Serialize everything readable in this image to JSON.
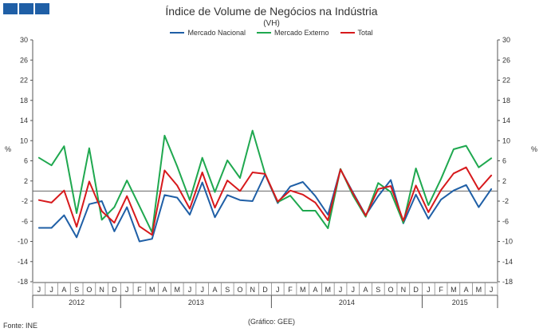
{
  "header": {
    "title": "Índice de Volume de Negócios na Indústria",
    "subtitle": "(VH)"
  },
  "footer": {
    "source": "Fonte:  INE",
    "credit": "(Gráfico:  GEE)"
  },
  "colors": {
    "nacional": "#1f5fa6",
    "externo": "#1fa84f",
    "total": "#d7191c",
    "logo": "#1f5fa6",
    "grid": "#888888"
  },
  "chart_data": {
    "type": "line",
    "title": "Índice de Volume de Negócios na Indústria",
    "subtitle": "(VH)",
    "ylabel": "%",
    "ylim": [
      -18,
      30
    ],
    "yticks": [
      30,
      26,
      22,
      18,
      14,
      10,
      6,
      2,
      -2,
      -6,
      -10,
      -14,
      -18
    ],
    "month_labels": [
      "J",
      "J",
      "A",
      "S",
      "O",
      "N",
      "D",
      "J",
      "F",
      "M",
      "A",
      "M",
      "J",
      "J",
      "A",
      "S",
      "O",
      "N",
      "D",
      "J",
      "F",
      "M",
      "A",
      "M",
      "J",
      "J",
      "A",
      "S",
      "O",
      "N",
      "D",
      "J",
      "F",
      "M",
      "A",
      "M",
      "J"
    ],
    "year_labels": [
      {
        "label": "2012",
        "start": 0,
        "end": 6
      },
      {
        "label": "2013",
        "start": 7,
        "end": 18
      },
      {
        "label": "2014",
        "start": 19,
        "end": 30
      },
      {
        "label": "2015",
        "start": 31,
        "end": 36
      }
    ],
    "series": [
      {
        "name": "Mercado Nacional",
        "color": "#1f5fa6",
        "values": [
          -7.3,
          -7.3,
          -4.8,
          -9.2,
          -2.6,
          -2.0,
          -8.0,
          -3.2,
          -10.0,
          -9.5,
          -0.8,
          -1.3,
          -4.7,
          1.7,
          -5.2,
          -0.8,
          -1.8,
          -2.0,
          3.3,
          -2.4,
          0.9,
          1.8,
          -1.0,
          -4.7,
          4.3,
          -0.3,
          -4.8,
          -1.0,
          2.2,
          -6.4,
          -0.7,
          -5.5,
          -1.7,
          0.1,
          1.2,
          -3.2,
          0.4
        ]
      },
      {
        "name": "Mercado Externo",
        "color": "#1fa84f",
        "values": [
          6.6,
          5.1,
          8.9,
          -4.4,
          8.5,
          -5.7,
          -3.2,
          2.1,
          -3.0,
          -8.2,
          11.0,
          4.9,
          -1.8,
          6.6,
          -0.2,
          6.1,
          2.6,
          12.0,
          3.4,
          -2.2,
          -0.9,
          -3.9,
          -3.9,
          -7.4,
          4.4,
          -0.9,
          -5.1,
          1.6,
          -0.2,
          -6.3,
          4.5,
          -2.8,
          2.4,
          8.3,
          9.0,
          4.7,
          6.5
        ]
      },
      {
        "name": "Total",
        "color": "#d7191c",
        "values": [
          -1.8,
          -2.3,
          0.1,
          -7.1,
          1.9,
          -4.0,
          -6.3,
          -1.0,
          -7.0,
          -8.7,
          4.1,
          1.1,
          -3.5,
          3.7,
          -3.3,
          2.1,
          -0.0,
          3.7,
          3.4,
          -2.1,
          0.1,
          -0.7,
          -2.3,
          -5.8,
          4.3,
          -0.5,
          -4.9,
          0.4,
          1.0,
          -5.9,
          1.1,
          -4.2,
          0.2,
          3.5,
          4.7,
          0.3,
          3.1
        ]
      }
    ]
  }
}
